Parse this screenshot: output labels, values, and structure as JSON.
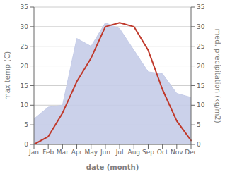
{
  "chart_data": {
    "type": "line",
    "categories": [
      "Jan",
      "Feb",
      "Mar",
      "Apr",
      "May",
      "Jun",
      "Jul",
      "Aug",
      "Sep",
      "Oct",
      "Nov",
      "Dec"
    ],
    "series": [
      {
        "type": "area",
        "color": "#c5cce8",
        "axis": "y2",
        "values": [
          6.5,
          9.5,
          10,
          27,
          25,
          31,
          29.5,
          24,
          18.5,
          18,
          13,
          12
        ]
      },
      {
        "type": "line",
        "color": "#c0392b",
        "values": [
          0,
          2,
          8,
          16,
          22,
          30,
          31,
          30,
          24,
          14,
          6,
          1
        ]
      }
    ],
    "xlabel": "date (month)",
    "ylabel": "max temp (C)",
    "y2label": "med. precipitation (kg/m2)",
    "ylim": [
      0,
      35
    ],
    "yticks": [
      0,
      5,
      10,
      15,
      20,
      25,
      30,
      35
    ],
    "y2lim": [
      0,
      35
    ],
    "y2ticks": [
      0,
      5,
      10,
      15,
      20,
      25,
      30,
      35
    ],
    "grid": true
  }
}
